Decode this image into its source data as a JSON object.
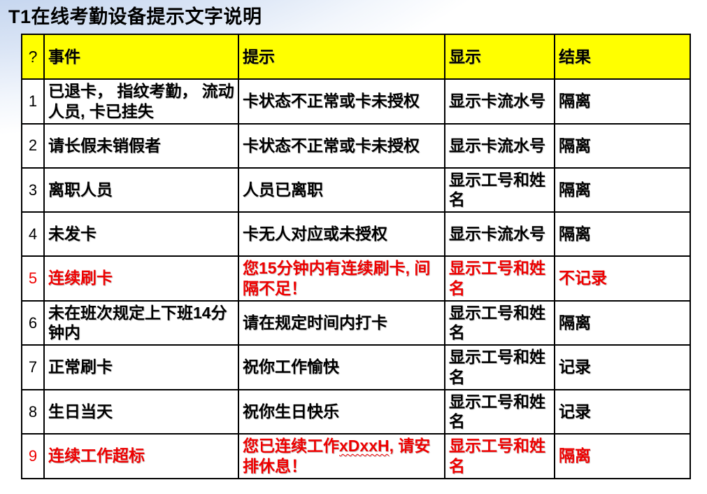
{
  "page": {
    "title": "T1在线考勤设备提示文字说明"
  },
  "colors": {
    "red_text": "#ee0000",
    "black_text": "#000000",
    "header_bg": "#ffff00",
    "border": "#000000",
    "background_top": "#b7c9e8"
  },
  "table": {
    "headers": {
      "num": "?",
      "event": "事件",
      "prompt": "提示",
      "display": "显示",
      "result": "结果"
    },
    "rows": [
      {
        "num": "1",
        "event": "已退卡， 指纹考勤， 流动人员, 卡已挂失",
        "prompt": "卡状态不正常或卡未授权",
        "display": "显示卡流水号",
        "result": "隔离",
        "color": "black"
      },
      {
        "num": "2",
        "event": "请长假未销假者",
        "prompt": "卡状态不正常或卡未授权",
        "display": "显示卡流水号",
        "result": "隔离",
        "color": "black"
      },
      {
        "num": "3",
        "event": "离职人员",
        "prompt": "人员已离职",
        "display": "显示工号和姓名",
        "result": "隔离",
        "color": "black"
      },
      {
        "num": "4",
        "event": "未发卡",
        "prompt": "卡无人对应或未授权",
        "display": "显示卡流水号",
        "result": "隔离",
        "color": "black"
      },
      {
        "num": "5",
        "event": "连续刷卡",
        "prompt": "您15分钟内有连续刷卡, 间隔不足！",
        "display": "显示工号和姓名",
        "result": "不记录",
        "color": "red"
      },
      {
        "num": "6",
        "event": "未在班次规定上下班14分钟内",
        "prompt": "请在规定时间内打卡",
        "display": "显示工号和姓名",
        "result": "隔离",
        "color": "black"
      },
      {
        "num": "7",
        "event": "正常刷卡",
        "prompt": "祝你工作愉快",
        "display": "显示工号和姓名",
        "result": "记录",
        "color": "black"
      },
      {
        "num": "8",
        "event": "生日当天",
        "prompt": "祝你生日快乐",
        "display": "显示工号和姓名",
        "result": "记录",
        "color": "black"
      },
      {
        "num": "9",
        "event": "连续工作超标",
        "prompt": {
          "pre": "您已连续工作",
          "wavy": "xDxxH",
          "post": ", 请安排休息！"
        },
        "display": "显示工号和姓名",
        "result": "隔离",
        "color": "red"
      }
    ]
  }
}
